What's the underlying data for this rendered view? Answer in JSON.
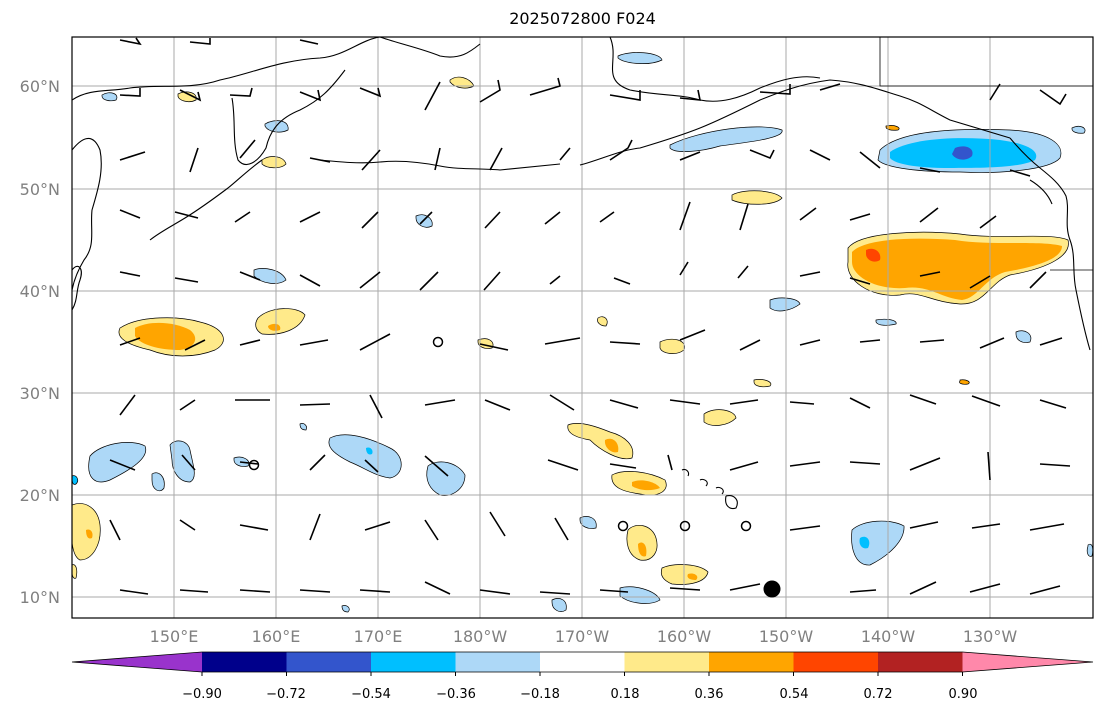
{
  "title": "2025072800 F024",
  "lat_labels": [
    "60°N",
    "50°N",
    "40°N",
    "30°N",
    "20°N",
    "10°N"
  ],
  "lon_labels": [
    "150°E",
    "160°E",
    "170°E",
    "180°W",
    "170°W",
    "160°W",
    "150°W",
    "140°W",
    "130°W"
  ],
  "colorbar": {
    "labels": [
      "−0.90",
      "−0.72",
      "−0.54",
      "−0.36",
      "−0.18",
      "0.18",
      "0.36",
      "0.54",
      "0.72",
      "0.90"
    ],
    "colors": [
      "#9933cc",
      "#00008b",
      "#3355cc",
      "#00bfff",
      "#add8f7",
      "#ffffff",
      "#ffea8a",
      "#ffa500",
      "#ff4500",
      "#b22222",
      "#ff88aa"
    ]
  },
  "legend_colors": {
    "light_blue": "#add8f7",
    "blue": "#00bfff",
    "royal": "#3355cc",
    "yellow": "#ffea8a",
    "orange": "#ffa500",
    "red_orange": "#ff4500"
  }
}
